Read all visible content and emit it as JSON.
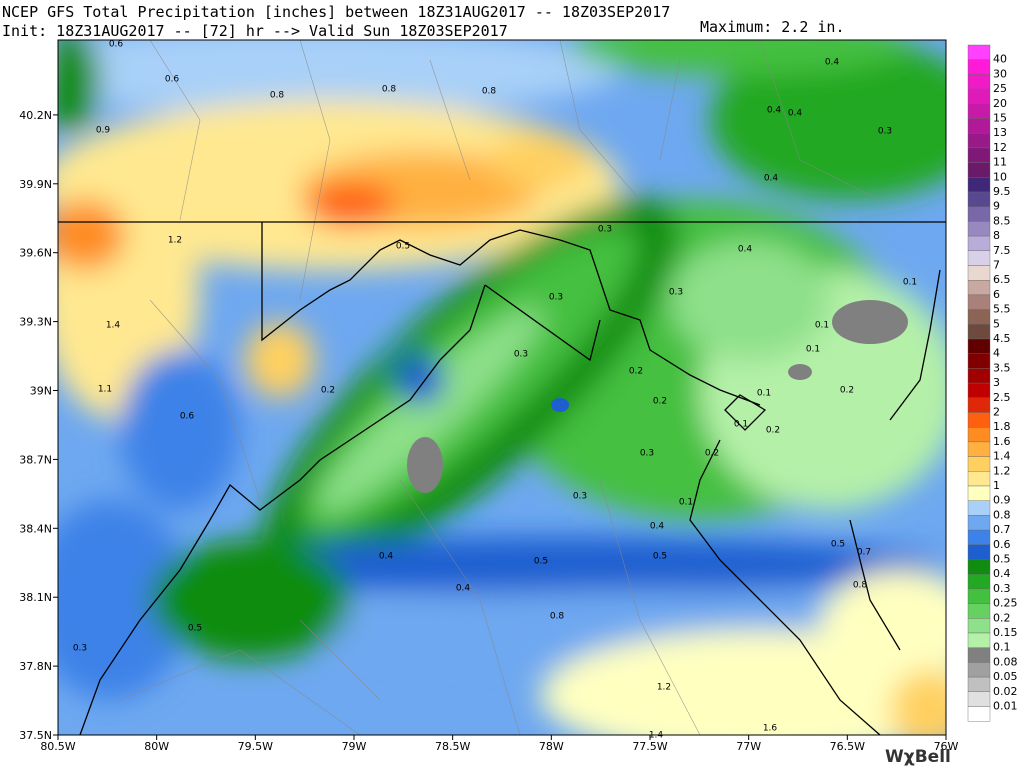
{
  "header": {
    "line1": "NCEP GFS Total Precipitation [inches] between 18Z31AUG2017 -- 18Z03SEP2017",
    "line2": "Init: 18Z31AUG2017 -- [72] hr --> Valid Sun 18Z03SEP2017",
    "maximum": "Maximum: 2.2 in."
  },
  "map": {
    "lon_labels": [
      "80.5W",
      "80W",
      "79.5W",
      "79W",
      "78.5W",
      "78W",
      "77.5W",
      "77W",
      "76.5W",
      "76W"
    ],
    "lat_labels": [
      "37.5N",
      "37.8N",
      "38.1N",
      "38.4N",
      "38.7N",
      "39N",
      "39.3N",
      "39.6N",
      "39.9N",
      "40.2N"
    ],
    "contour_labels": [
      "0.6",
      "0.6",
      "0.8",
      "0.8",
      "0.8",
      "0.4",
      "0.4",
      "0.4",
      "0.3",
      "0.9",
      "0.4",
      "1.2",
      "0.5",
      "0.3",
      "0.4",
      "0.1",
      "0.3",
      "0.3",
      "1.4",
      "0.1",
      "0.1",
      "0.3",
      "0.2",
      "0.1",
      "0.2",
      "1.1",
      "0.2",
      "0.2",
      "0.6",
      "0.1",
      "0.2",
      "0.3",
      "0.2",
      "0.3",
      "0.1",
      "0.4",
      "0.5",
      "0.7",
      "0.4",
      "0.5",
      "0.5",
      "0.4",
      "0.8",
      "0.8",
      "0.5",
      "0.3",
      "1.2",
      "1.6",
      "1.4"
    ]
  },
  "colorbar": {
    "labels": [
      "40",
      "30",
      "25",
      "20",
      "15",
      "13",
      "12",
      "11",
      "10",
      "9.5",
      "9",
      "8.5",
      "8",
      "7.5",
      "7",
      "6.5",
      "6",
      "5.5",
      "5",
      "4.5",
      "4",
      "3.5",
      "3",
      "2.5",
      "2",
      "1.8",
      "1.6",
      "1.4",
      "1.2",
      "1",
      "0.9",
      "0.8",
      "0.7",
      "0.6",
      "0.5",
      "0.4",
      "0.3",
      "0.25",
      "0.2",
      "0.15",
      "0.1",
      "0.08",
      "0.05",
      "0.02",
      "0.01"
    ],
    "colors": [
      "#ff40ff",
      "#ff1ad8",
      "#f01ac8",
      "#e01ab8",
      "#c81aa8",
      "#b01a98",
      "#981a88",
      "#801878",
      "#6a1a68",
      "#402878",
      "#584890",
      "#7868a8",
      "#9888c0",
      "#b8acd8",
      "#d8d0e8",
      "#e8d8d0",
      "#c8a8a0",
      "#a8827a",
      "#8c6456",
      "#6e4a3e",
      "#600000",
      "#800000",
      "#a00000",
      "#c00000",
      "#e02808",
      "#ff6010",
      "#ff8c20",
      "#ffb040",
      "#ffd060",
      "#ffe890",
      "#ffffc0",
      "#a8d0f8",
      "#6ea8f0",
      "#3c82e8",
      "#1e5fd0",
      "#108c10",
      "#22a822",
      "#44c040",
      "#66d060",
      "#8ee08a",
      "#b4f0a8",
      "#808080",
      "#a0a0a0",
      "#c0c0c0",
      "#e0e0e0",
      "#ffffff"
    ]
  },
  "logo": "WχBell"
}
